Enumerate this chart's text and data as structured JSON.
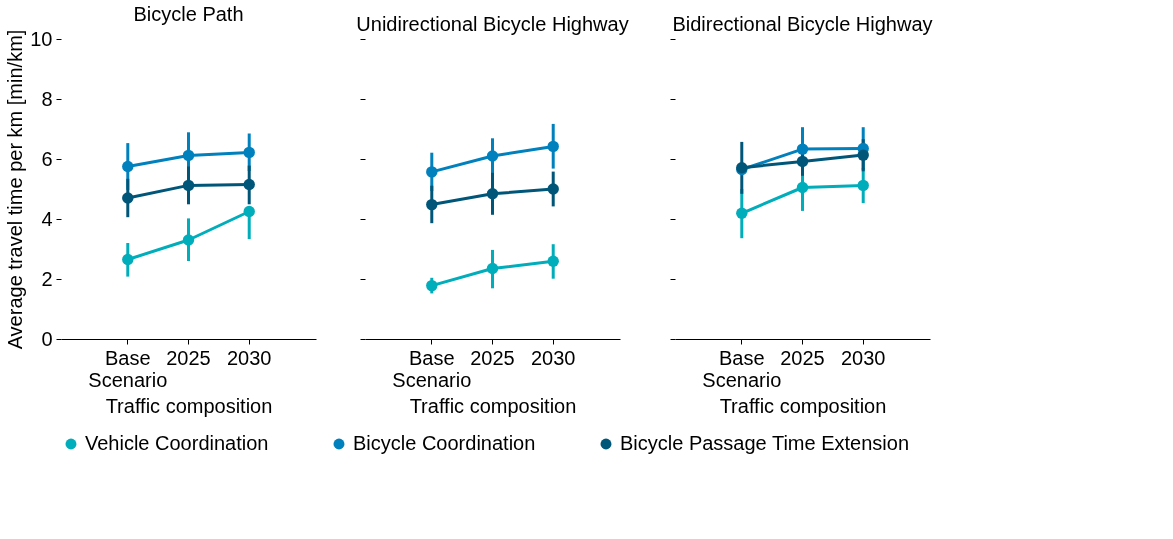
{
  "chart_data": [
    {
      "type": "line",
      "title": "Bicycle Path",
      "xlabel": "Traffic composition",
      "ylabel": "Average travel time per km [min/km]",
      "categories": [
        "Base Scenario",
        "2025",
        "2030"
      ],
      "ylim": [
        0,
        10
      ],
      "yticks": [
        0,
        2,
        4,
        6,
        8,
        10
      ],
      "marker": "circle",
      "grid": false,
      "legend": "bottom",
      "series": [
        {
          "name": "Vehicle Coordination",
          "color": "#00adba",
          "values": [
            2.65,
            3.3,
            4.25
          ],
          "errors": [
            [
              2.08,
              3.2
            ],
            [
              2.6,
              4.02
            ],
            [
              3.33,
              4.25
            ]
          ]
        },
        {
          "name": "Bicycle Coordination",
          "color": "#0080bd",
          "values": [
            5.75,
            6.12,
            6.22
          ],
          "errors": [
            [
              4.97,
              6.53
            ],
            [
              5.35,
              6.89
            ],
            [
              5.6,
              6.85
            ]
          ]
        },
        {
          "name": "Bicycle Passage Time Extension",
          "color": "#005678",
          "values": [
            4.7,
            5.12,
            5.15
          ],
          "errors": [
            [
              4.06,
              5.34
            ],
            [
              4.49,
              5.75
            ],
            [
              4.49,
              5.78
            ]
          ]
        }
      ]
    },
    {
      "type": "line",
      "title": "Unidirectional Bicycle Highway",
      "xlabel": "Traffic composition",
      "categories": [
        "Base Scenario",
        "2025",
        "2030"
      ],
      "ylim": [
        0,
        10
      ],
      "yticks": [
        0,
        2,
        4,
        6,
        8,
        10
      ],
      "tick_labels": "x",
      "marker": "circle",
      "grid": false,
      "legend": "bottom",
      "series": [
        {
          "name": "Vehicle Coordination",
          "color": "#00adba",
          "values": [
            1.78,
            2.35,
            2.59
          ],
          "errors": [
            [
              1.52,
              2.04
            ],
            [
              1.69,
              2.97
            ],
            [
              2.01,
              3.16
            ]
          ]
        },
        {
          "name": "Bicycle Coordination",
          "color": "#0080bd",
          "values": [
            5.57,
            6.1,
            6.42
          ],
          "errors": [
            [
              4.93,
              6.21
            ],
            [
              5.5,
              6.69
            ],
            [
              5.68,
              7.17
            ]
          ]
        },
        {
          "name": "Bicycle Passage Time Extension",
          "color": "#005678",
          "values": [
            4.48,
            4.84,
            5.0
          ],
          "errors": [
            [
              3.86,
              5.11
            ],
            [
              4.14,
              5.54
            ],
            [
              4.42,
              5.58
            ]
          ]
        }
      ]
    },
    {
      "type": "line",
      "title": "Bidirectional Bicycle Highway",
      "xlabel": "Traffic composition",
      "categories": [
        "Base Scenario",
        "2025",
        "2030"
      ],
      "ylim": [
        0,
        10
      ],
      "yticks": [
        0,
        2,
        4,
        6,
        8,
        10
      ],
      "tick_labels": "x",
      "marker": "circle",
      "grid": false,
      "legend": "bottom",
      "series": [
        {
          "name": "Vehicle Coordination",
          "color": "#00adba",
          "values": [
            4.19,
            5.05,
            5.12
          ],
          "errors": [
            [
              3.36,
              5.0
            ],
            [
              4.27,
              5.83
            ],
            [
              4.53,
              5.7
            ]
          ]
        },
        {
          "name": "Bicycle Coordination",
          "color": "#0080bd",
          "values": [
            5.65,
            6.33,
            6.35
          ],
          "errors": [
            null,
            [
              5.6,
              7.06
            ],
            [
              5.64,
              7.06
            ]
          ]
        },
        {
          "name": "Bicycle Passage Time Extension",
          "color": "#005678",
          "values": [
            5.71,
            5.92,
            6.13
          ],
          "errors": [
            [
              4.84,
              6.57
            ],
            [
              5.44,
              6.4
            ],
            [
              5.59,
              6.66
            ]
          ]
        }
      ]
    }
  ]
}
